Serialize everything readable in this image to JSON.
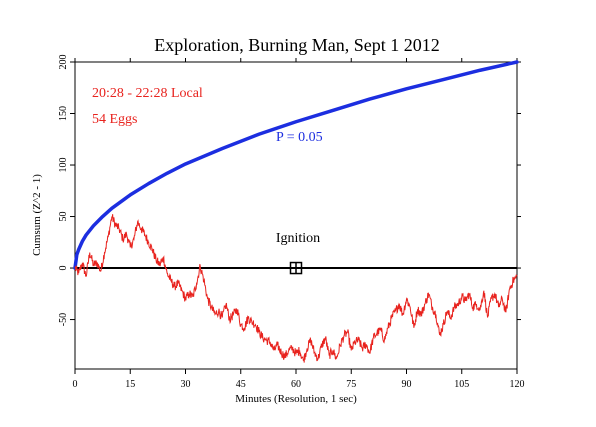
{
  "chart_data": {
    "type": "line",
    "title": "Exploration, Burning Man, Sept 1 2012",
    "xlabel": "Minutes (Resolution, 1 sec)",
    "ylabel": "Cumsum (Z^2 - 1)",
    "xlim": [
      0,
      120
    ],
    "ylim": [
      -98,
      200
    ],
    "x_ticks": [
      0,
      15,
      30,
      45,
      60,
      75,
      90,
      105,
      120
    ],
    "y_ticks": [
      -50,
      0,
      50,
      100,
      150,
      200
    ],
    "x_tick_labels": [
      "0",
      "15",
      "30",
      "45",
      "60",
      "75",
      "90",
      "105",
      "120"
    ],
    "y_tick_labels": [
      "-50",
      "0",
      "50",
      "100",
      "150",
      "200"
    ],
    "grid": false,
    "colors": {
      "cumsum": "#e8231e",
      "envelope": "#1c2ee0",
      "axis": "#000000"
    },
    "annotations": {
      "time_range": "20:28 - 22:28 Local",
      "eggs": "54 Eggs",
      "envelope_label": "P = 0.05",
      "marker_label": "Ignition"
    },
    "marker": {
      "x": 60,
      "y": 0,
      "shape": "boxed-plus"
    },
    "series": [
      {
        "role": "envelope",
        "x": [
          0,
          0.5,
          1,
          2,
          3,
          5,
          7.5,
          10,
          15,
          20,
          25,
          30,
          40,
          50,
          60,
          70,
          80,
          90,
          100,
          110,
          120
        ],
        "values": [
          0,
          13,
          18,
          26,
          32,
          41,
          50,
          58,
          71,
          82,
          92,
          101,
          116,
          130,
          142,
          153,
          164,
          174,
          183,
          192,
          200
        ]
      },
      {
        "role": "cumsum",
        "x": [
          0,
          1,
          2,
          3,
          4,
          5,
          6,
          7,
          8,
          9,
          10,
          11,
          12,
          13,
          14,
          15,
          16,
          17,
          18,
          19,
          20,
          21,
          22,
          23,
          24,
          25,
          26,
          27,
          28,
          29,
          30,
          31,
          32,
          33,
          34,
          35,
          36,
          37,
          38,
          39,
          40,
          41,
          42,
          43,
          44,
          45,
          46,
          47,
          48,
          49,
          50,
          51,
          52,
          53,
          54,
          55,
          56,
          57,
          58,
          59,
          60,
          61,
          62,
          63,
          64,
          65,
          66,
          67,
          68,
          69,
          70,
          71,
          72,
          73,
          74,
          75,
          76,
          77,
          78,
          79,
          80,
          81,
          82,
          83,
          84,
          85,
          86,
          87,
          88,
          89,
          90,
          91,
          92,
          93,
          94,
          95,
          96,
          97,
          98,
          99,
          100,
          101,
          102,
          103,
          104,
          105,
          106,
          107,
          108,
          109,
          110,
          111,
          112,
          113,
          114,
          115,
          116,
          117,
          118,
          119,
          120
        ],
        "values": [
          0,
          -5,
          5,
          -8,
          15,
          3,
          5,
          -3,
          15,
          30,
          50,
          42,
          38,
          28,
          33,
          20,
          28,
          45,
          38,
          32,
          25,
          18,
          8,
          3,
          10,
          -5,
          -12,
          -18,
          -15,
          -22,
          -30,
          -25,
          -28,
          -15,
          2,
          -12,
          -30,
          -38,
          -45,
          -42,
          -48,
          -35,
          -50,
          -45,
          -40,
          -55,
          -58,
          -48,
          -52,
          -55,
          -62,
          -68,
          -70,
          -72,
          -80,
          -75,
          -82,
          -86,
          -80,
          -78,
          -83,
          -80,
          -90,
          -78,
          -70,
          -82,
          -88,
          -75,
          -68,
          -85,
          -80,
          -88,
          -75,
          -66,
          -62,
          -80,
          -72,
          -70,
          -78,
          -74,
          -82,
          -68,
          -63,
          -60,
          -70,
          -58,
          -48,
          -42,
          -35,
          -45,
          -30,
          -38,
          -58,
          -40,
          -45,
          -35,
          -25,
          -38,
          -45,
          -65,
          -55,
          -42,
          -48,
          -38,
          -35,
          -28,
          -32,
          -25,
          -38,
          -35,
          -40,
          -22,
          -48,
          -30,
          -25,
          -38,
          -30,
          -43,
          -20,
          -12,
          -8
        ]
      }
    ]
  }
}
